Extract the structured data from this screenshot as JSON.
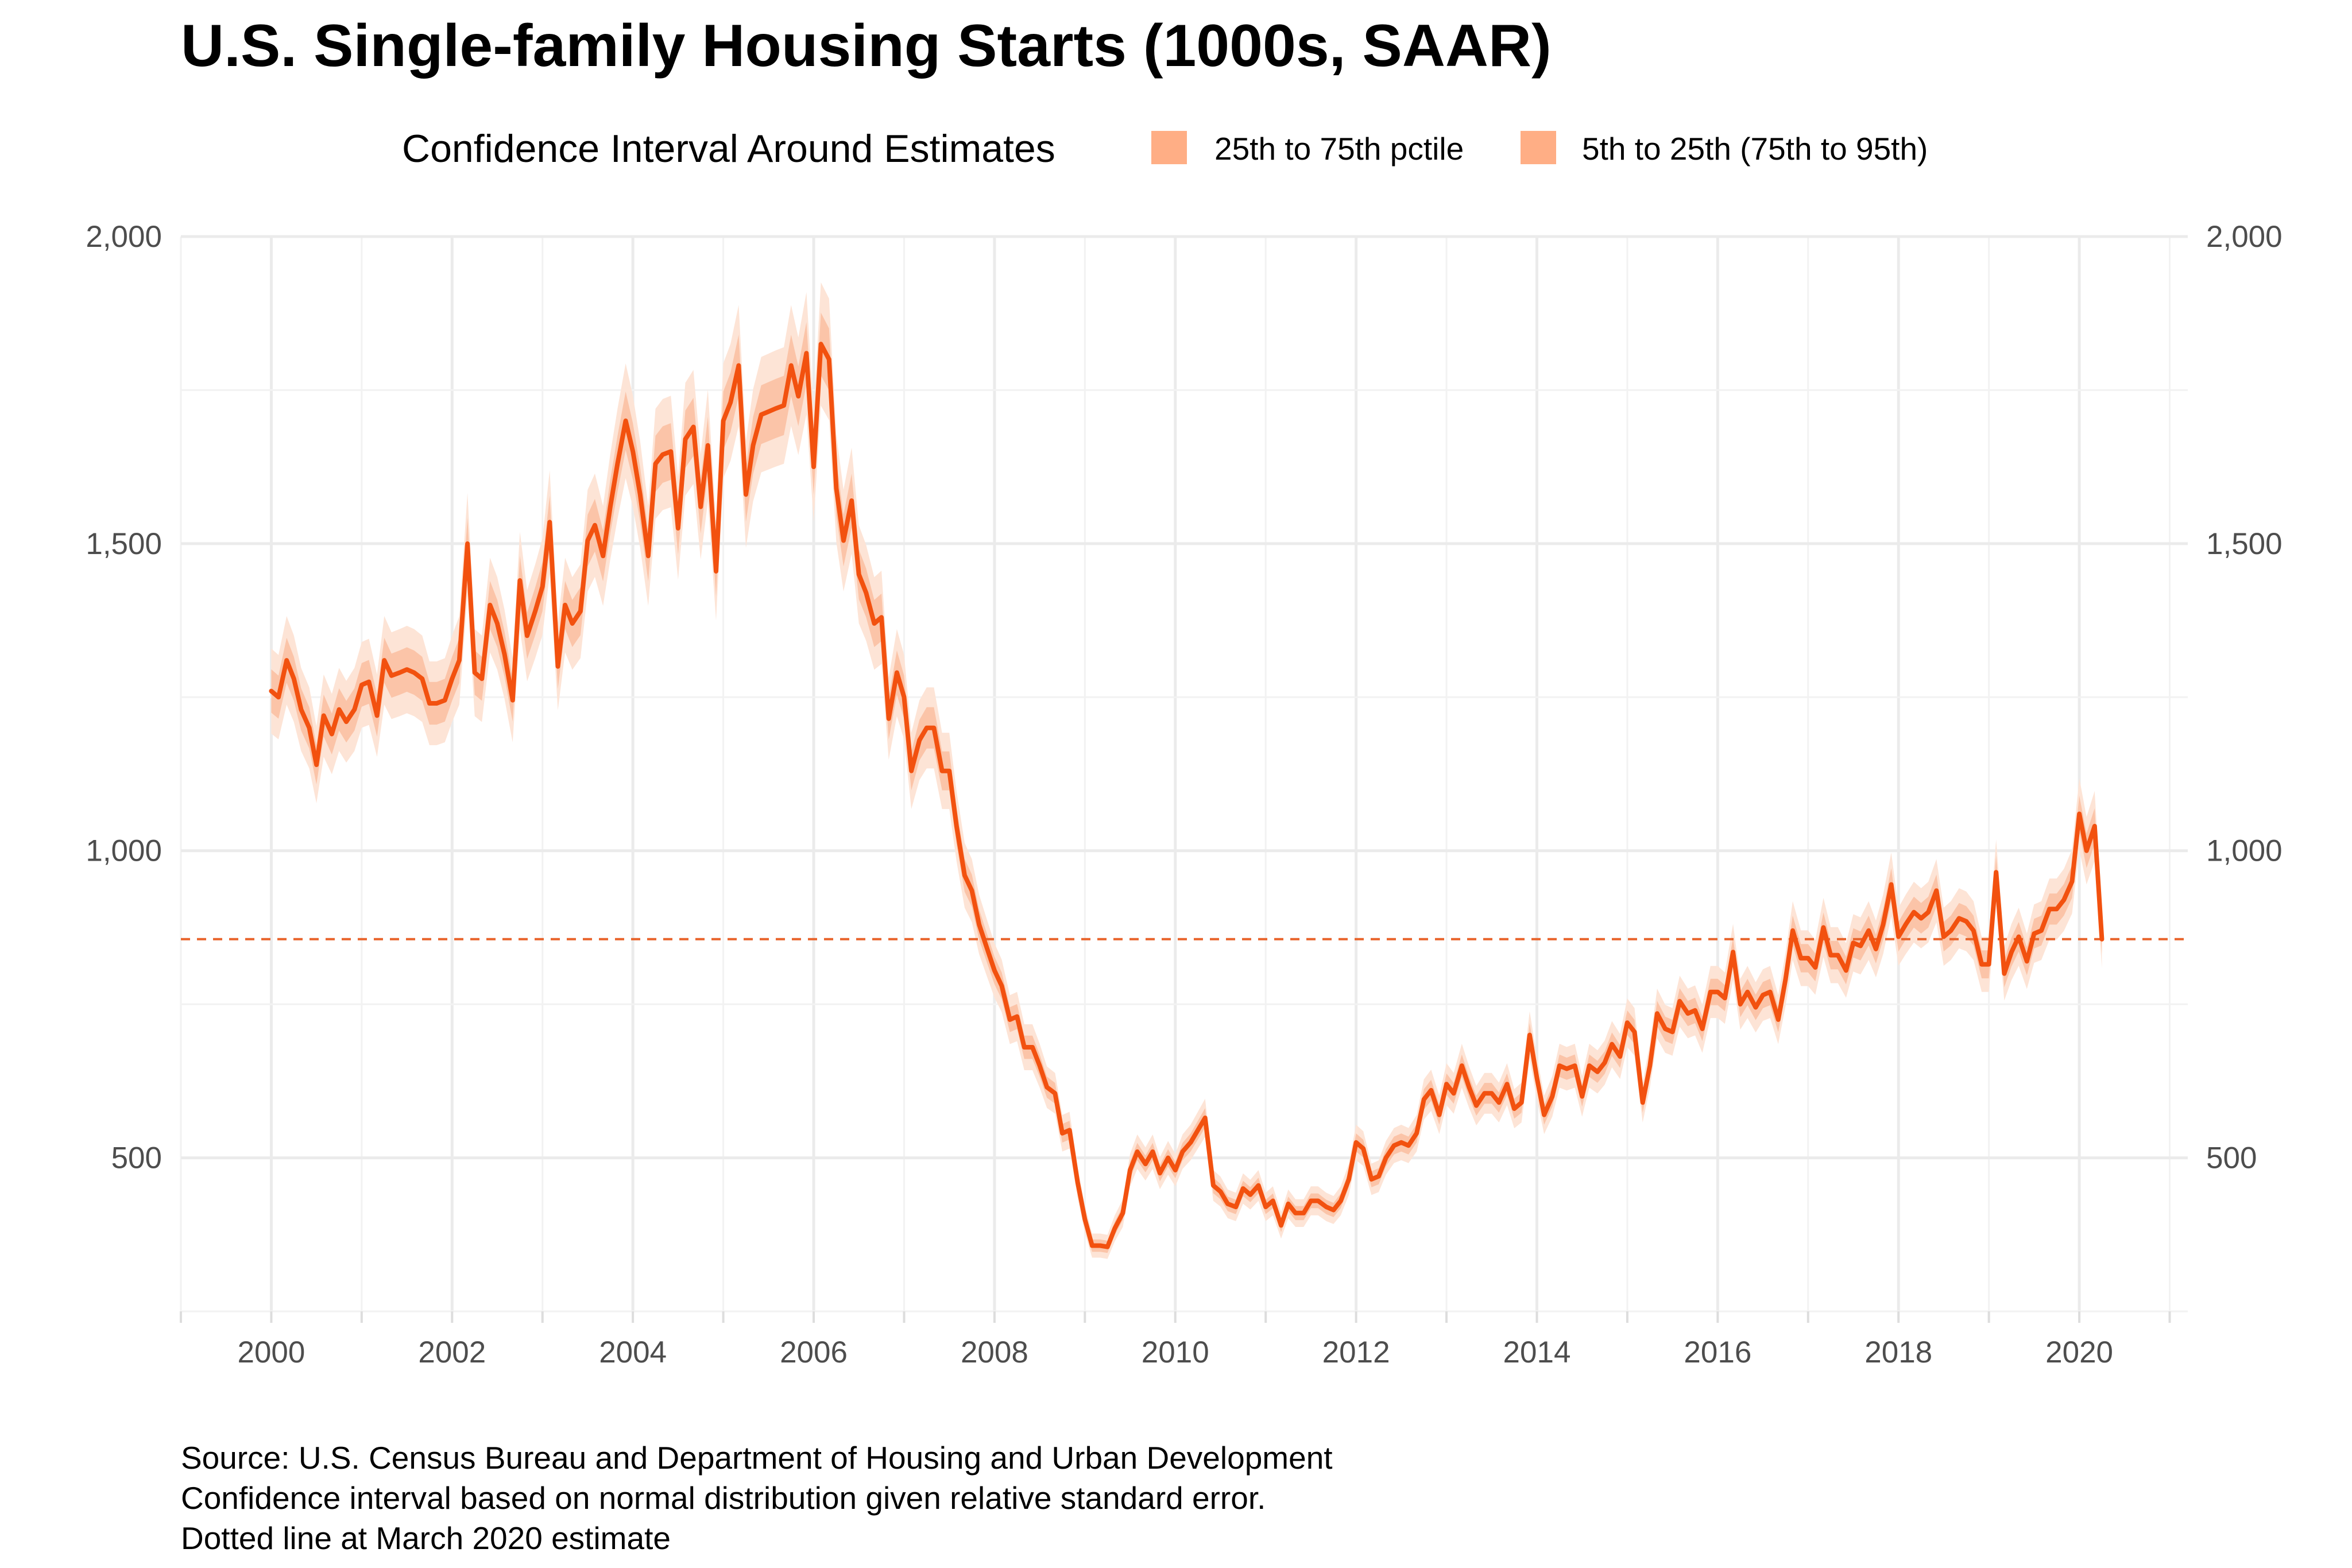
{
  "chart_data": {
    "type": "line",
    "title": "U.S. Single-family Housing Starts (1000s, SAAR)",
    "legend": {
      "title": "Confidence Interval Around Estimates",
      "placement": "top",
      "items": [
        {
          "label": "25th to 75th pctile",
          "color": "#ffae85"
        },
        {
          "label": "5th to 25th (75th to 95th)",
          "color": "#ffae85"
        }
      ]
    },
    "x_ticks": [
      "2000",
      "2002",
      "2004",
      "2006",
      "2008",
      "2010",
      "2012",
      "2014",
      "2016",
      "2018",
      "2020"
    ],
    "y_ticks": [
      "2,000",
      "1,500",
      "1,000",
      "500"
    ],
    "y_tick_values": [
      2000,
      1500,
      1000,
      500
    ],
    "xlim": [
      1999.0,
      2021.2
    ],
    "ylim": [
      250,
      2000
    ],
    "grid": true,
    "secondary_y_axis": true,
    "reference_line": {
      "value": 856,
      "style": "dashed",
      "color": "#e8632a"
    },
    "colors": {
      "line": "#f2510f",
      "band_inner": "#fbc4a8",
      "band_outer": "#fde4d6",
      "reference": "#e8632a"
    },
    "series": [
      {
        "values": [
          [
            2000.0,
            1260
          ],
          [
            2000.08,
            1250
          ],
          [
            2000.17,
            1310
          ],
          [
            2000.25,
            1280
          ],
          [
            2000.33,
            1230
          ],
          [
            2000.42,
            1200
          ],
          [
            2000.5,
            1140
          ],
          [
            2000.58,
            1220
          ],
          [
            2000.67,
            1190
          ],
          [
            2000.75,
            1230
          ],
          [
            2000.83,
            1210
          ],
          [
            2000.92,
            1230
          ],
          [
            2001.0,
            1270
          ],
          [
            2001.08,
            1275
          ],
          [
            2001.17,
            1220
          ],
          [
            2001.25,
            1310
          ],
          [
            2001.33,
            1285
          ],
          [
            2001.42,
            1290
          ],
          [
            2001.5,
            1295
          ],
          [
            2001.58,
            1290
          ],
          [
            2001.67,
            1280
          ],
          [
            2001.75,
            1240
          ],
          [
            2001.83,
            1240
          ],
          [
            2001.92,
            1245
          ],
          [
            2002.0,
            1280
          ],
          [
            2002.08,
            1310
          ],
          [
            2002.17,
            1500
          ],
          [
            2002.25,
            1290
          ],
          [
            2002.33,
            1280
          ],
          [
            2002.42,
            1400
          ],
          [
            2002.5,
            1370
          ],
          [
            2002.58,
            1320
          ],
          [
            2002.67,
            1245
          ],
          [
            2002.75,
            1440
          ],
          [
            2002.83,
            1350
          ],
          [
            2002.92,
            1390
          ],
          [
            2003.0,
            1430
          ],
          [
            2003.08,
            1535
          ],
          [
            2003.17,
            1300
          ],
          [
            2003.25,
            1400
          ],
          [
            2003.33,
            1370
          ],
          [
            2003.42,
            1390
          ],
          [
            2003.5,
            1505
          ],
          [
            2003.58,
            1530
          ],
          [
            2003.67,
            1480
          ],
          [
            2003.75,
            1560
          ],
          [
            2003.83,
            1630
          ],
          [
            2003.92,
            1700
          ],
          [
            2004.0,
            1650
          ],
          [
            2004.08,
            1580
          ],
          [
            2004.17,
            1480
          ],
          [
            2004.25,
            1630
          ],
          [
            2004.33,
            1645
          ],
          [
            2004.42,
            1650
          ],
          [
            2004.5,
            1525
          ],
          [
            2004.58,
            1670
          ],
          [
            2004.67,
            1690
          ],
          [
            2004.75,
            1560
          ],
          [
            2004.83,
            1660
          ],
          [
            2004.92,
            1455
          ],
          [
            2005.0,
            1700
          ],
          [
            2005.08,
            1730
          ],
          [
            2005.17,
            1790
          ],
          [
            2005.25,
            1580
          ],
          [
            2005.33,
            1660
          ],
          [
            2005.42,
            1710
          ],
          [
            2005.5,
            1715
          ],
          [
            2005.58,
            1720
          ],
          [
            2005.67,
            1725
          ],
          [
            2005.75,
            1790
          ],
          [
            2005.83,
            1740
          ],
          [
            2005.92,
            1810
          ],
          [
            2006.0,
            1625
          ],
          [
            2006.08,
            1825
          ],
          [
            2006.17,
            1800
          ],
          [
            2006.25,
            1590
          ],
          [
            2006.33,
            1505
          ],
          [
            2006.42,
            1570
          ],
          [
            2006.5,
            1450
          ],
          [
            2006.58,
            1420
          ],
          [
            2006.67,
            1370
          ],
          [
            2006.75,
            1380
          ],
          [
            2006.83,
            1215
          ],
          [
            2006.92,
            1290
          ],
          [
            2007.0,
            1250
          ],
          [
            2007.08,
            1130
          ],
          [
            2007.17,
            1180
          ],
          [
            2007.25,
            1200
          ],
          [
            2007.33,
            1200
          ],
          [
            2007.42,
            1130
          ],
          [
            2007.5,
            1130
          ],
          [
            2007.58,
            1040
          ],
          [
            2007.67,
            960
          ],
          [
            2007.75,
            935
          ],
          [
            2007.83,
            880
          ],
          [
            2007.92,
            840
          ],
          [
            2008.0,
            805
          ],
          [
            2008.08,
            780
          ],
          [
            2008.17,
            725
          ],
          [
            2008.25,
            730
          ],
          [
            2008.33,
            680
          ],
          [
            2008.42,
            680
          ],
          [
            2008.5,
            650
          ],
          [
            2008.58,
            615
          ],
          [
            2008.67,
            605
          ],
          [
            2008.75,
            540
          ],
          [
            2008.83,
            545
          ],
          [
            2008.92,
            460
          ],
          [
            2009.0,
            400
          ],
          [
            2009.08,
            357
          ],
          [
            2009.17,
            357
          ],
          [
            2009.25,
            355
          ],
          [
            2009.33,
            385
          ],
          [
            2009.42,
            410
          ],
          [
            2009.5,
            480
          ],
          [
            2009.58,
            510
          ],
          [
            2009.67,
            490
          ],
          [
            2009.75,
            510
          ],
          [
            2009.83,
            475
          ],
          [
            2009.92,
            500
          ],
          [
            2010.0,
            480
          ],
          [
            2010.08,
            510
          ],
          [
            2010.17,
            525
          ],
          [
            2010.25,
            545
          ],
          [
            2010.33,
            565
          ],
          [
            2010.42,
            455
          ],
          [
            2010.5,
            445
          ],
          [
            2010.58,
            425
          ],
          [
            2010.67,
            420
          ],
          [
            2010.75,
            450
          ],
          [
            2010.83,
            440
          ],
          [
            2010.92,
            455
          ],
          [
            2011.0,
            420
          ],
          [
            2011.08,
            430
          ],
          [
            2011.17,
            390
          ],
          [
            2011.25,
            425
          ],
          [
            2011.33,
            410
          ],
          [
            2011.42,
            410
          ],
          [
            2011.5,
            430
          ],
          [
            2011.58,
            430
          ],
          [
            2011.67,
            420
          ],
          [
            2011.75,
            415
          ],
          [
            2011.83,
            430
          ],
          [
            2011.92,
            465
          ],
          [
            2012.0,
            525
          ],
          [
            2012.08,
            515
          ],
          [
            2012.17,
            465
          ],
          [
            2012.25,
            470
          ],
          [
            2012.33,
            500
          ],
          [
            2012.42,
            520
          ],
          [
            2012.5,
            525
          ],
          [
            2012.58,
            520
          ],
          [
            2012.67,
            540
          ],
          [
            2012.75,
            595
          ],
          [
            2012.83,
            610
          ],
          [
            2012.92,
            570
          ],
          [
            2013.0,
            620
          ],
          [
            2013.08,
            605
          ],
          [
            2013.17,
            650
          ],
          [
            2013.25,
            615
          ],
          [
            2013.33,
            585
          ],
          [
            2013.42,
            605
          ],
          [
            2013.5,
            605
          ],
          [
            2013.58,
            590
          ],
          [
            2013.67,
            620
          ],
          [
            2013.75,
            580
          ],
          [
            2013.83,
            590
          ],
          [
            2013.92,
            700
          ],
          [
            2014.0,
            630
          ],
          [
            2014.08,
            570
          ],
          [
            2014.17,
            600
          ],
          [
            2014.25,
            650
          ],
          [
            2014.33,
            645
          ],
          [
            2014.42,
            650
          ],
          [
            2014.5,
            600
          ],
          [
            2014.58,
            650
          ],
          [
            2014.67,
            640
          ],
          [
            2014.75,
            655
          ],
          [
            2014.83,
            685
          ],
          [
            2014.92,
            665
          ],
          [
            2015.0,
            720
          ],
          [
            2015.08,
            705
          ],
          [
            2015.17,
            590
          ],
          [
            2015.25,
            650
          ],
          [
            2015.33,
            735
          ],
          [
            2015.42,
            710
          ],
          [
            2015.5,
            705
          ],
          [
            2015.58,
            755
          ],
          [
            2015.67,
            735
          ],
          [
            2015.75,
            740
          ],
          [
            2015.83,
            710
          ],
          [
            2015.92,
            770
          ],
          [
            2016.0,
            770
          ],
          [
            2016.08,
            760
          ],
          [
            2016.17,
            835
          ],
          [
            2016.25,
            750
          ],
          [
            2016.33,
            770
          ],
          [
            2016.42,
            745
          ],
          [
            2016.5,
            765
          ],
          [
            2016.58,
            770
          ],
          [
            2016.67,
            725
          ],
          [
            2016.75,
            790
          ],
          [
            2016.83,
            870
          ],
          [
            2016.92,
            825
          ],
          [
            2017.0,
            825
          ],
          [
            2017.08,
            810
          ],
          [
            2017.17,
            875
          ],
          [
            2017.25,
            830
          ],
          [
            2017.33,
            830
          ],
          [
            2017.42,
            805
          ],
          [
            2017.5,
            850
          ],
          [
            2017.58,
            845
          ],
          [
            2017.67,
            870
          ],
          [
            2017.75,
            840
          ],
          [
            2017.83,
            880
          ],
          [
            2017.92,
            945
          ],
          [
            2018.0,
            860
          ],
          [
            2018.08,
            880
          ],
          [
            2018.17,
            900
          ],
          [
            2018.25,
            890
          ],
          [
            2018.33,
            900
          ],
          [
            2018.42,
            935
          ],
          [
            2018.5,
            860
          ],
          [
            2018.58,
            870
          ],
          [
            2018.67,
            890
          ],
          [
            2018.75,
            885
          ],
          [
            2018.83,
            870
          ],
          [
            2018.92,
            815
          ],
          [
            2019.0,
            815
          ],
          [
            2019.08,
            965
          ],
          [
            2019.17,
            800
          ],
          [
            2019.25,
            835
          ],
          [
            2019.33,
            860
          ],
          [
            2019.42,
            820
          ],
          [
            2019.5,
            865
          ],
          [
            2019.58,
            870
          ],
          [
            2019.67,
            905
          ],
          [
            2019.75,
            905
          ],
          [
            2019.83,
            920
          ],
          [
            2019.92,
            950
          ],
          [
            2020.0,
            1060
          ],
          [
            2020.08,
            1000
          ],
          [
            2020.17,
            1040
          ],
          [
            2020.25,
            856
          ]
        ]
      }
    ]
  },
  "notes": {
    "source": "Source: U.S. Census Bureau and Department of Housing and Urban Development",
    "ci": "Confidence interval based on normal distribution given relative standard error.",
    "dotted": "Dotted line at March 2020 estimate"
  }
}
